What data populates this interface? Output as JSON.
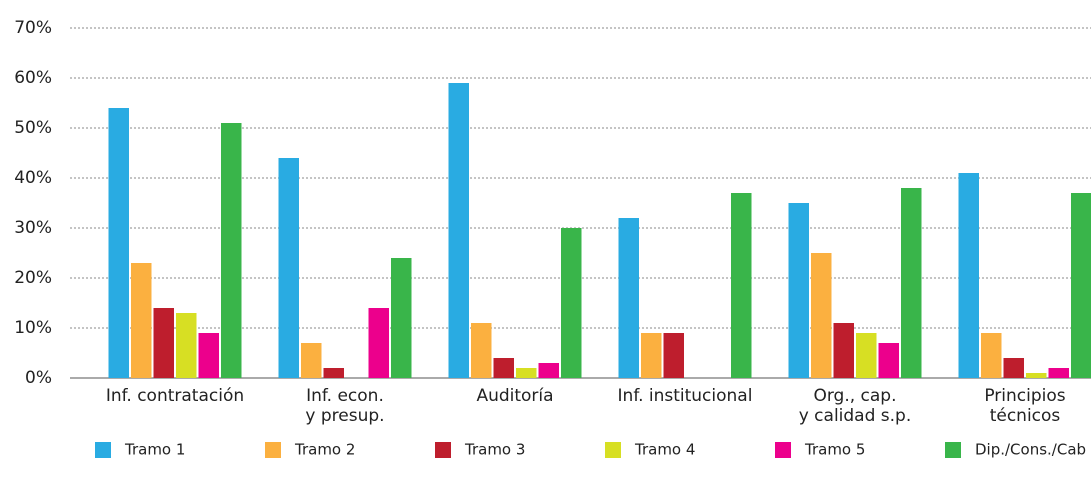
{
  "chart_data": {
    "type": "bar",
    "categories": [
      "Inf. contratación",
      "Inf. econ.\ny presup.",
      "Auditoría",
      "Inf. institucional",
      "Org., cap.\ny calidad s.p.",
      "Principios\ntécnicos"
    ],
    "series": [
      {
        "name": "Tramo 1",
        "color": "#29abe2",
        "values": [
          54,
          44,
          59,
          32,
          35,
          41
        ]
      },
      {
        "name": "Tramo 2",
        "color": "#fbb040",
        "values": [
          23,
          7,
          11,
          9,
          25,
          9
        ]
      },
      {
        "name": "Tramo 3",
        "color": "#be1e2d",
        "values": [
          14,
          2,
          4,
          9,
          11,
          4
        ]
      },
      {
        "name": "Tramo 4",
        "color": "#d7df23",
        "values": [
          13,
          0,
          2,
          0,
          9,
          1
        ]
      },
      {
        "name": "Tramo 5",
        "color": "#ec008c",
        "values": [
          9,
          14,
          3,
          0,
          7,
          2
        ]
      },
      {
        "name": "Dip./Cons./Cab",
        "color": "#39b54a",
        "values": [
          51,
          24,
          30,
          37,
          38,
          37
        ]
      }
    ],
    "ylim": [
      0,
      70
    ],
    "yticks": [
      {
        "value": 0,
        "label": "0%"
      },
      {
        "value": 10,
        "label": "10%"
      },
      {
        "value": 20,
        "label": "20%"
      },
      {
        "value": 30,
        "label": "30%"
      },
      {
        "value": 40,
        "label": "40%"
      },
      {
        "value": 50,
        "label": "50%"
      },
      {
        "value": 60,
        "label": "60%"
      },
      {
        "value": 70,
        "label": "70%"
      }
    ],
    "grid": true,
    "legend": "bottom"
  }
}
